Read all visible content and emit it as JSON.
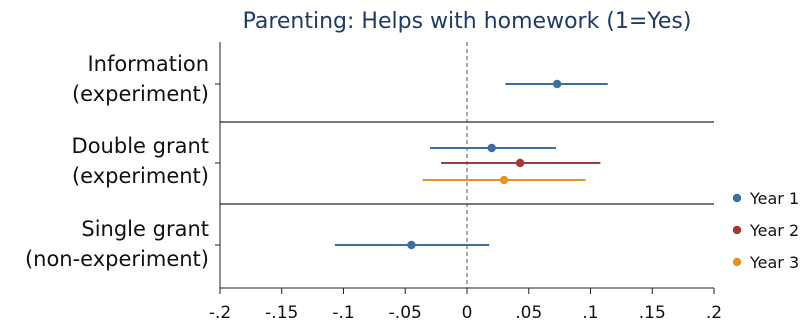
{
  "chart_data": {
    "type": "scatter",
    "title": "Parenting: Helps with homework (1=Yes)",
    "xlim": [
      -0.2,
      0.2
    ],
    "x_ticks": [
      -0.2,
      -0.15,
      -0.1,
      -0.05,
      0,
      0.05,
      0.1,
      0.15,
      0.2
    ],
    "x_tick_labels": [
      "-.2",
      "-.15",
      "-.1",
      "-.05",
      "0",
      ".05",
      ".1",
      ".15",
      ".2"
    ],
    "reference_line": 0,
    "groups": [
      {
        "key": "information",
        "label_lines": [
          "Information",
          "(experiment)"
        ]
      },
      {
        "key": "double",
        "label_lines": [
          "Double grant",
          "(experiment)"
        ]
      },
      {
        "key": "single",
        "label_lines": [
          "Single grant",
          "(non-experiment)"
        ]
      }
    ],
    "legend_position": "right",
    "series": [
      {
        "name": "Year 1",
        "color": "#3a6ea5",
        "points": [
          {
            "group": "information",
            "estimate": 0.073,
            "ci": [
              0.031,
              0.114
            ]
          },
          {
            "group": "double",
            "estimate": 0.02,
            "ci": [
              -0.03,
              0.072
            ]
          },
          {
            "group": "single",
            "estimate": -0.045,
            "ci": [
              -0.107,
              0.018
            ]
          }
        ]
      },
      {
        "name": "Year 2",
        "color": "#a33a3a",
        "points": [
          {
            "group": "double",
            "estimate": 0.043,
            "ci": [
              -0.021,
              0.108
            ]
          }
        ]
      },
      {
        "name": "Year 3",
        "color": "#e8921f",
        "points": [
          {
            "group": "double",
            "estimate": 0.03,
            "ci": [
              -0.036,
              0.096
            ]
          }
        ]
      }
    ]
  }
}
